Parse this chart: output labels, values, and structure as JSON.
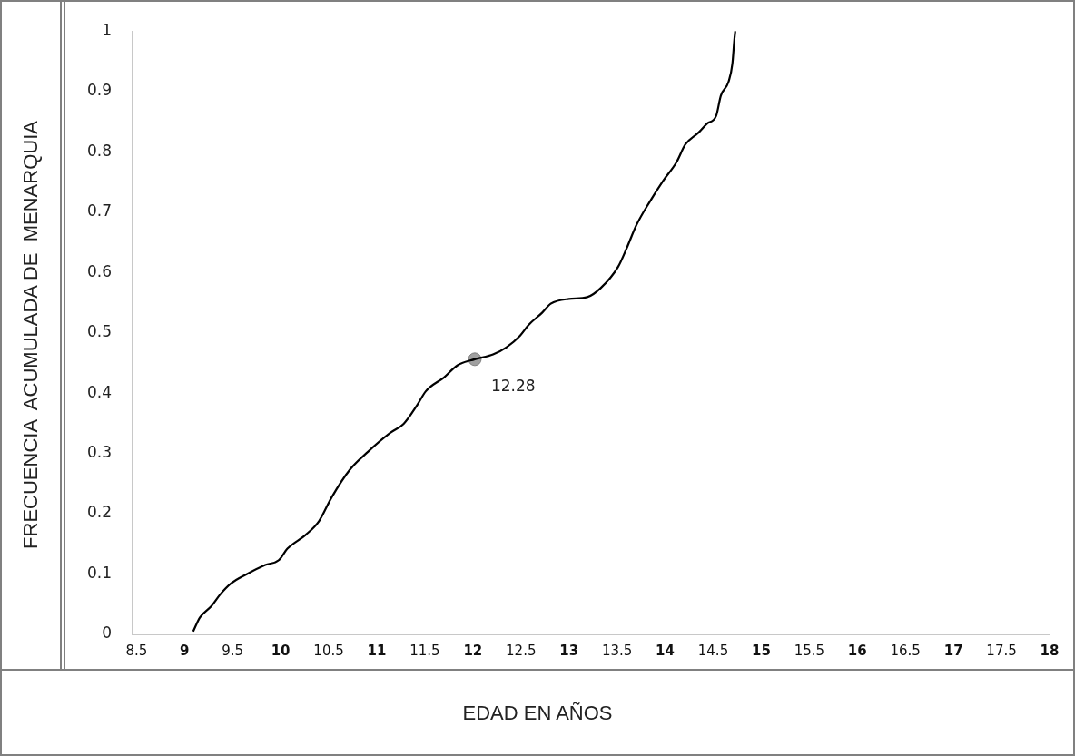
{
  "chart_data": {
    "type": "line",
    "xlabel": "EDAD EN AÑOS",
    "ylabel": "FRECUENCIA  ACUMULADA DE  MENARQUIA",
    "xlim": [
      8.45,
      18
    ],
    "xticks": [
      8.5,
      9,
      9.5,
      10,
      10.5,
      11,
      11.5,
      12,
      12.5,
      13,
      13.5,
      14,
      14.5,
      15,
      15.5,
      16,
      16.5,
      17,
      17.5,
      18
    ],
    "ylim": [
      0,
      1
    ],
    "yticks": [
      0,
      0.1,
      0.2,
      0.3,
      0.4,
      0.5,
      0.6,
      0.7,
      0.8,
      0.9,
      1
    ],
    "series": [
      {
        "type": "line",
        "color": "#000000",
        "marker": "none",
        "x": [
          9.09,
          9.16,
          9.28,
          9.37,
          9.48,
          9.65,
          9.84,
          9.98,
          10.07,
          10.26,
          10.4,
          10.53,
          10.72,
          10.91,
          11.14,
          11.28,
          11.42,
          11.51,
          11.7,
          11.84,
          12.02,
          12.21,
          12.35,
          12.49,
          12.58,
          12.72,
          12.81,
          13.0,
          13.19,
          13.33,
          13.51,
          13.6,
          13.7,
          13.84,
          13.98,
          14.12,
          14.21,
          14.35,
          14.44,
          14.53,
          14.58,
          14.66,
          14.7,
          14.72,
          14.73
        ],
        "values": [
          0.005,
          0.028,
          0.047,
          0.066,
          0.084,
          0.1,
          0.115,
          0.123,
          0.142,
          0.165,
          0.188,
          0.227,
          0.273,
          0.303,
          0.334,
          0.349,
          0.38,
          0.403,
          0.426,
          0.446,
          0.456,
          0.464,
          0.476,
          0.495,
          0.513,
          0.533,
          0.548,
          0.556,
          0.559,
          0.574,
          0.609,
          0.64,
          0.678,
          0.717,
          0.752,
          0.783,
          0.812,
          0.832,
          0.847,
          0.859,
          0.893,
          0.916,
          0.946,
          0.985,
          1.0
        ]
      },
      {
        "type": "scatter",
        "color": "#a0a0a0",
        "marker": "circle",
        "x": [
          12.02
        ],
        "values": [
          0.456
        ]
      }
    ],
    "annotations": [
      "12.28"
    ]
  }
}
